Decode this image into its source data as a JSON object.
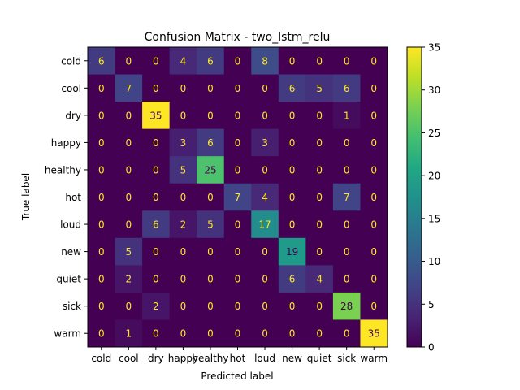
{
  "chart_data": {
    "type": "heatmap",
    "title": "Confusion Matrix - two_lstm_relu",
    "xlabel": "Predicted label",
    "ylabel": "True label",
    "x_categories": [
      "cold",
      "cool",
      "dry",
      "happy",
      "healthy",
      "hot",
      "loud",
      "new",
      "quiet",
      "sick",
      "warm"
    ],
    "y_categories": [
      "cold",
      "cool",
      "dry",
      "happy",
      "healthy",
      "hot",
      "loud",
      "new",
      "quiet",
      "sick",
      "warm"
    ],
    "matrix": [
      [
        6,
        0,
        0,
        4,
        6,
        0,
        8,
        0,
        0,
        0,
        0
      ],
      [
        0,
        7,
        0,
        0,
        0,
        0,
        0,
        6,
        5,
        6,
        0
      ],
      [
        0,
        0,
        35,
        0,
        0,
        0,
        0,
        0,
        0,
        1,
        0
      ],
      [
        0,
        0,
        0,
        3,
        6,
        0,
        3,
        0,
        0,
        0,
        0
      ],
      [
        0,
        0,
        0,
        5,
        25,
        0,
        0,
        0,
        0,
        0,
        0
      ],
      [
        0,
        0,
        0,
        0,
        0,
        7,
        4,
        0,
        0,
        7,
        0
      ],
      [
        0,
        0,
        6,
        2,
        5,
        0,
        17,
        0,
        0,
        0,
        0
      ],
      [
        0,
        5,
        0,
        0,
        0,
        0,
        0,
        19,
        0,
        0,
        0
      ],
      [
        0,
        2,
        0,
        0,
        0,
        0,
        0,
        6,
        4,
        0,
        0
      ],
      [
        0,
        0,
        2,
        0,
        0,
        0,
        0,
        0,
        0,
        28,
        0
      ],
      [
        0,
        1,
        0,
        0,
        0,
        0,
        0,
        0,
        0,
        0,
        35
      ]
    ],
    "value_range": [
      0,
      35
    ],
    "colorbar_ticks": [
      0,
      5,
      10,
      15,
      20,
      25,
      30,
      35
    ],
    "colormap": "viridis",
    "grid": false,
    "legend": "colorbar-right"
  }
}
